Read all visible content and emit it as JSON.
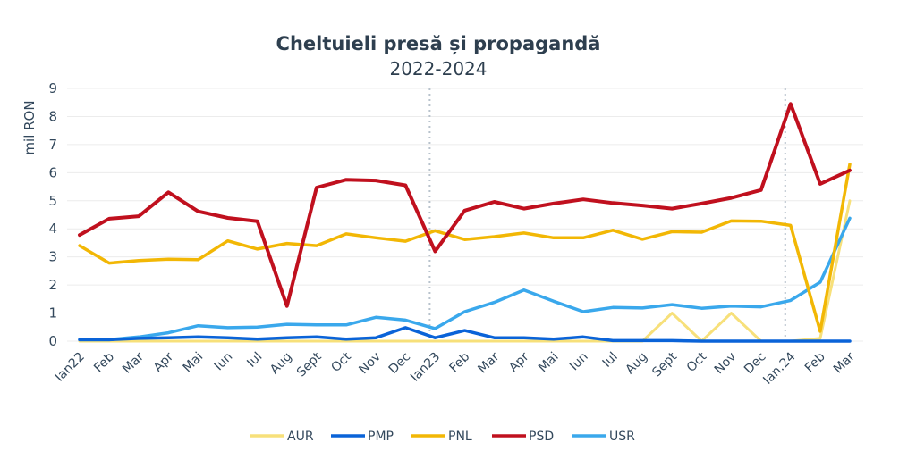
{
  "chart_data": {
    "type": "line",
    "title": "Cheltuieli presă și propagandă",
    "subtitle": "2022-2024",
    "xlabel": "",
    "ylabel": "mil RON",
    "ylim": [
      0,
      9
    ],
    "yticks": [
      "0",
      "1",
      "2",
      "3",
      "4",
      "5",
      "6",
      "7",
      "8",
      "9"
    ],
    "grid": true,
    "legend_position": "bottom",
    "categories": [
      "Ian22",
      "Feb",
      "Mar",
      "Apr",
      "Mai",
      "Iun",
      "Iul",
      "Aug",
      "Sept",
      "Oct",
      "Nov",
      "Dec",
      "Ian23",
      "Feb",
      "Mar",
      "Apr",
      "Mai",
      "Iun",
      "Iul",
      "Aug",
      "Sept",
      "Oct",
      "Nov",
      "Dec",
      "Ian.24",
      "Feb",
      "Mar"
    ],
    "year_dividers": [
      "Ian23",
      "Ian.24"
    ],
    "series": [
      {
        "name": "AUR",
        "color": "#f7e07a",
        "values": [
          0,
          0,
          0,
          0,
          0,
          0,
          0,
          0,
          0,
          0,
          0,
          0,
          0,
          0,
          0,
          0,
          0,
          0,
          0,
          0,
          1.0,
          0,
          1.0,
          0,
          0,
          0.1,
          5.0
        ]
      },
      {
        "name": "PMP",
        "color": "#0a63d8",
        "values": [
          0.05,
          0.05,
          0.1,
          0.12,
          0.15,
          0.12,
          0.07,
          0.12,
          0.15,
          0.07,
          0.12,
          0.48,
          0.12,
          0.38,
          0.12,
          0.12,
          0.07,
          0.15,
          0.02,
          0.02,
          0.02,
          0.0,
          0.0,
          0.0,
          0.0,
          0.0,
          0.0
        ]
      },
      {
        "name": "PNL",
        "color": "#f2b705",
        "values": [
          3.4,
          2.78,
          2.87,
          2.92,
          2.9,
          3.57,
          3.28,
          3.48,
          3.4,
          3.82,
          3.68,
          3.56,
          3.93,
          3.62,
          3.72,
          3.85,
          3.68,
          3.68,
          3.95,
          3.63,
          3.9,
          3.88,
          4.28,
          4.27,
          4.12,
          0.35,
          6.3
        ]
      },
      {
        "name": "PSD",
        "color": "#c0101e",
        "values": [
          3.78,
          4.36,
          4.45,
          5.3,
          4.62,
          4.39,
          4.27,
          1.25,
          5.47,
          5.75,
          5.72,
          5.55,
          3.2,
          4.65,
          4.96,
          4.72,
          4.9,
          5.05,
          4.92,
          4.83,
          4.72,
          4.9,
          5.1,
          5.38,
          8.45,
          5.6,
          6.08
        ]
      },
      {
        "name": "USR",
        "color": "#3aa8ec",
        "values": [
          0.05,
          0.05,
          0.15,
          0.3,
          0.55,
          0.48,
          0.5,
          0.6,
          0.58,
          0.58,
          0.85,
          0.75,
          0.45,
          1.05,
          1.38,
          1.82,
          1.42,
          1.05,
          1.2,
          1.18,
          1.3,
          1.17,
          1.25,
          1.22,
          1.45,
          2.1,
          4.38
        ]
      }
    ]
  }
}
